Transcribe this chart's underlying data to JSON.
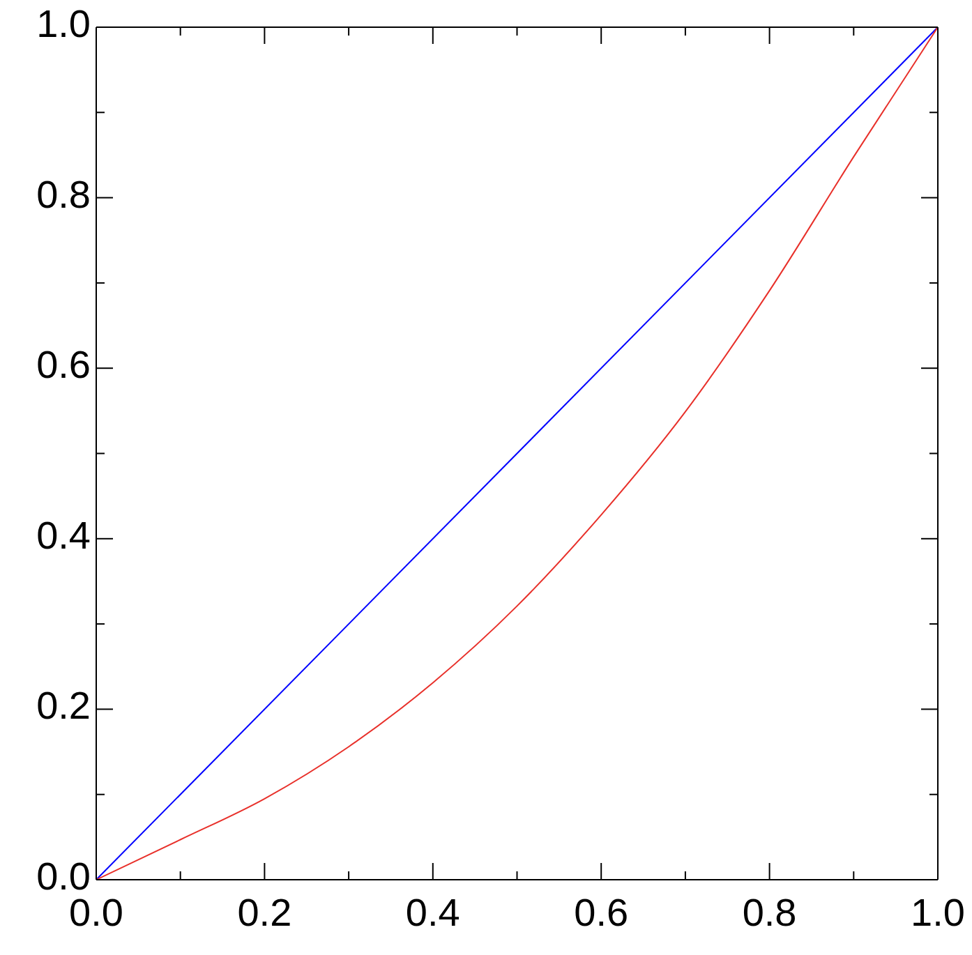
{
  "chart_data": {
    "type": "line",
    "series": [
      {
        "color": "#0000ff",
        "x": [
          0,
          1
        ],
        "values": [
          0,
          1
        ]
      },
      {
        "color": "#e8302a",
        "x": [
          0,
          0.1,
          0.2,
          0.3,
          0.4,
          0.5,
          0.6,
          0.7,
          0.8,
          0.9,
          1
        ],
        "values": [
          0,
          0.047,
          0.095,
          0.156,
          0.231,
          0.321,
          0.428,
          0.549,
          0.691,
          0.848,
          1
        ]
      }
    ],
    "xlim": [
      0,
      1
    ],
    "ylim": [
      0,
      1
    ],
    "xticks": [
      {
        "value": 0,
        "label": "0.0"
      },
      {
        "value": 0.1,
        "label": null
      },
      {
        "value": 0.2,
        "label": "0.2"
      },
      {
        "value": 0.3,
        "label": null
      },
      {
        "value": 0.4,
        "label": "0.4"
      },
      {
        "value": 0.5,
        "label": null
      },
      {
        "value": 0.6,
        "label": "0.6"
      },
      {
        "value": 0.7,
        "label": null
      },
      {
        "value": 0.8,
        "label": "0.8"
      },
      {
        "value": 0.9,
        "label": null
      },
      {
        "value": 1,
        "label": "1.0"
      }
    ],
    "yticks": [
      {
        "value": 0,
        "label": "0.0"
      },
      {
        "value": 0.1,
        "label": null
      },
      {
        "value": 0.2,
        "label": "0.2"
      },
      {
        "value": 0.3,
        "label": null
      },
      {
        "value": 0.4,
        "label": "0.4"
      },
      {
        "value": 0.5,
        "label": null
      },
      {
        "value": 0.6,
        "label": "0.6"
      },
      {
        "value": 0.7,
        "label": null
      },
      {
        "value": 0.8,
        "label": "0.8"
      },
      {
        "value": 0.9,
        "label": null
      },
      {
        "value": 1,
        "label": "1.0"
      }
    ],
    "grid": false,
    "marker": "none",
    "line_style": "solid"
  }
}
